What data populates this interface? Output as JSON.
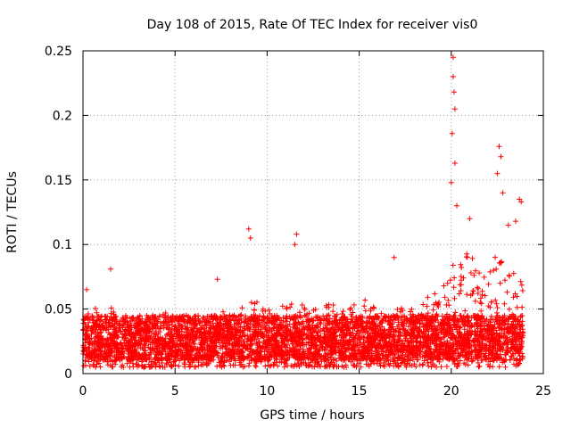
{
  "chart_data": {
    "type": "scatter",
    "title": "Day 108 of 2015, Rate Of TEC Index for receiver vis0",
    "xlabel": "GPS time / hours",
    "ylabel": "ROTI / TECUs",
    "xlim": [
      0,
      25
    ],
    "ylim": [
      0,
      0.25
    ],
    "x_ticks": [
      0,
      5,
      10,
      15,
      20,
      25
    ],
    "y_ticks": [
      0,
      0.05,
      0.1,
      0.15,
      0.2,
      0.25
    ],
    "x_tick_labels": [
      "0",
      "5",
      "10",
      "15",
      "20",
      "25"
    ],
    "y_tick_labels": [
      "0",
      "0.05",
      "0.1",
      "0.15",
      "0.2",
      "0.25"
    ],
    "grid": true,
    "marker": "+",
    "color": "#ff0000",
    "series": [
      {
        "name": "ROTI",
        "data_range_hours": [
          0,
          23.9
        ],
        "typical_band": [
          0.01,
          0.045
        ],
        "notable_points": [
          {
            "x": 0.2,
            "y": 0.065
          },
          {
            "x": 1.5,
            "y": 0.081
          },
          {
            "x": 7.3,
            "y": 0.073
          },
          {
            "x": 9.0,
            "y": 0.112
          },
          {
            "x": 9.1,
            "y": 0.105
          },
          {
            "x": 11.6,
            "y": 0.108
          },
          {
            "x": 11.5,
            "y": 0.1
          },
          {
            "x": 16.9,
            "y": 0.09
          },
          {
            "x": 20.0,
            "y": 0.148
          },
          {
            "x": 20.1,
            "y": 0.245
          },
          {
            "x": 20.1,
            "y": 0.23
          },
          {
            "x": 20.15,
            "y": 0.218
          },
          {
            "x": 20.2,
            "y": 0.205
          },
          {
            "x": 20.05,
            "y": 0.186
          },
          {
            "x": 20.2,
            "y": 0.163
          },
          {
            "x": 20.3,
            "y": 0.13
          },
          {
            "x": 21.0,
            "y": 0.12
          },
          {
            "x": 22.6,
            "y": 0.176
          },
          {
            "x": 22.7,
            "y": 0.168
          },
          {
            "x": 22.5,
            "y": 0.155
          },
          {
            "x": 22.8,
            "y": 0.14
          },
          {
            "x": 23.1,
            "y": 0.115
          },
          {
            "x": 23.5,
            "y": 0.118
          },
          {
            "x": 23.7,
            "y": 0.135
          },
          {
            "x": 23.8,
            "y": 0.133
          }
        ]
      }
    ]
  }
}
